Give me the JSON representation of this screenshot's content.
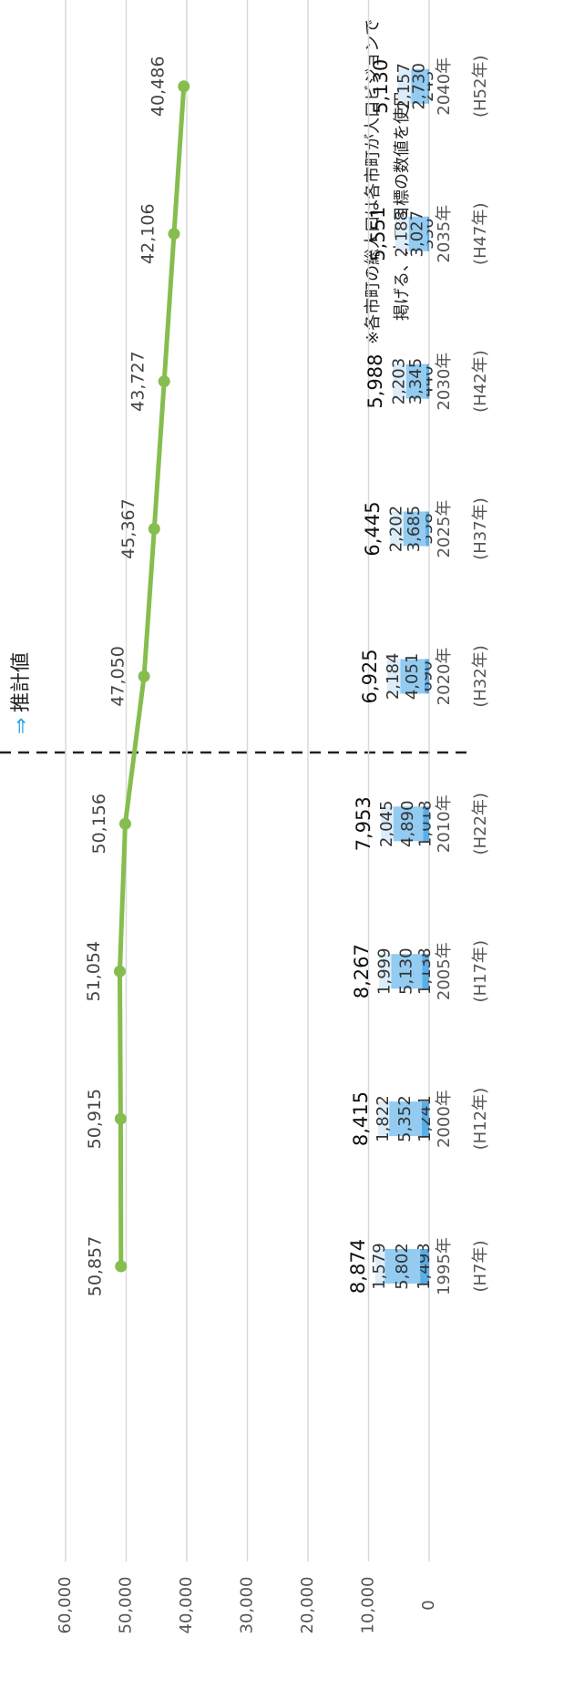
{
  "chart_data": {
    "type": "bar_line",
    "categories": [
      "1995年",
      "2000年",
      "2005年",
      "2010年",
      "2020年",
      "2025年",
      "2030年",
      "2035年",
      "2040年"
    ],
    "subcategories": [
      "(H7年)",
      "(H12年)",
      "(H17年)",
      "(H22年)",
      "(H32年)",
      "(H37年)",
      "(H42年)",
      "(H47年)",
      "(H52年)"
    ],
    "series": [
      {
        "color": "#5aaee8",
        "values": [
          1493,
          1241,
          1138,
          1018,
          690,
          558,
          440,
          336,
          243
        ],
        "value_labels": [
          "1,493",
          "1,241",
          "1,138",
          "1,018",
          "690",
          "558",
          "440",
          "336",
          "243"
        ]
      },
      {
        "color": "#93cbf1",
        "values": [
          5802,
          5352,
          5130,
          4890,
          4051,
          3685,
          3345,
          3027,
          2730
        ],
        "value_labels": [
          "5,802",
          "5,352",
          "5,130",
          "4,890",
          "4,051",
          "3,685",
          "3,345",
          "3,027",
          "2,730"
        ]
      },
      {
        "color": "#dcedf9",
        "values": [
          1579,
          1822,
          1999,
          2045,
          2184,
          2202,
          2203,
          2188,
          2157
        ],
        "value_labels": [
          "1,579",
          "1,822",
          "1,999",
          "2,045",
          "2,184",
          "2,202",
          "2,203",
          "2,188",
          "2,157"
        ]
      },
      {
        "type": "line",
        "color": "#86bd4f",
        "values": [
          50857,
          50915,
          51054,
          50156,
          47050,
          45367,
          43727,
          42106,
          40486
        ],
        "value_labels": [
          "50,857",
          "50,915",
          "51,054",
          "50,156",
          "47,050",
          "45,367",
          "43,727",
          "42,106",
          "40,486"
        ]
      }
    ],
    "totals": [
      8874,
      8415,
      8267,
      7953,
      6925,
      6445,
      5988,
      5551,
      5130
    ],
    "total_labels": [
      "8,874",
      "8,415",
      "8,267",
      "7,953",
      "6,925",
      "6,445",
      "5,988",
      "5,551",
      "5,130"
    ],
    "ylim": [
      0,
      60000
    ],
    "yticks": [
      0,
      {
        "value": 10000,
        "label": "10,000"
      },
      {
        "value": 20000,
        "label": "20,000"
      },
      {
        "value": 30000,
        "label": "30,000"
      },
      {
        "value": 40000,
        "label": "40,000"
      },
      {
        "value": 50000,
        "label": "50,000"
      },
      {
        "value": 60000,
        "label": "60,000"
      }
    ],
    "grid": true,
    "annotation_arrow": "⇒",
    "annotation": "推計値",
    "notes": [
      "※各市町の総人口は各市町が人口ビジョンで",
      "掲げる、人口目標の数値を使用"
    ]
  }
}
